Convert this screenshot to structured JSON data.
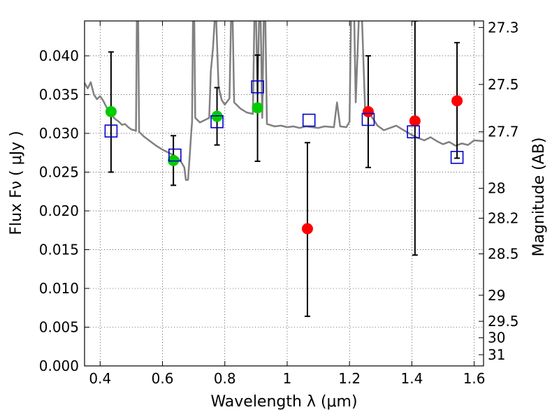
{
  "chart_data": {
    "type": "scatter",
    "title": "",
    "xlabel": "Wavelength  λ (μm)",
    "ylabel": "Flux  Fν  ( μJy )",
    "y2label": "Magnitude (AB)",
    "xlim": [
      0.35,
      1.63
    ],
    "ylim": [
      0.0,
      0.0445
    ],
    "xticks": [
      {
        "v": 0.4,
        "label": "0.4"
      },
      {
        "v": 0.6,
        "label": "0.6"
      },
      {
        "v": 0.8,
        "label": "0.8"
      },
      {
        "v": 1.0,
        "label": "1"
      },
      {
        "v": 1.2,
        "label": "1.2"
      },
      {
        "v": 1.4,
        "label": "1.4"
      },
      {
        "v": 1.6,
        "label": "1.6"
      }
    ],
    "yticks": [
      {
        "v": 0.0,
        "label": "0.000"
      },
      {
        "v": 0.005,
        "label": "0.005"
      },
      {
        "v": 0.01,
        "label": "0.010"
      },
      {
        "v": 0.015,
        "label": "0.015"
      },
      {
        "v": 0.02,
        "label": "0.020"
      },
      {
        "v": 0.025,
        "label": "0.025"
      },
      {
        "v": 0.03,
        "label": "0.030"
      },
      {
        "v": 0.035,
        "label": "0.035"
      },
      {
        "v": 0.04,
        "label": "0.040"
      }
    ],
    "y2ticks": [
      {
        "mag": 27.3,
        "label": "27.3"
      },
      {
        "mag": 27.5,
        "label": "27.5"
      },
      {
        "mag": 27.7,
        "label": "27.7"
      },
      {
        "mag": 28,
        "label": "28"
      },
      {
        "mag": 28.2,
        "label": "28.2"
      },
      {
        "mag": 28.5,
        "label": "28.5"
      },
      {
        "mag": 29,
        "label": "29"
      },
      {
        "mag": 29.5,
        "label": "29.5"
      },
      {
        "mag": 30,
        "label": "30"
      },
      {
        "mag": 31,
        "label": "31"
      }
    ],
    "grid": true,
    "legend": "none",
    "series": [
      {
        "type": "errorbar",
        "color": "#000000",
        "points": [
          {
            "x": 0.435,
            "y": 0.0328,
            "ylo": 0.025,
            "yhi": 0.0405
          },
          {
            "x": 0.635,
            "y": 0.0265,
            "ylo": 0.0233,
            "yhi": 0.0297
          },
          {
            "x": 0.775,
            "y": 0.0322,
            "ylo": 0.0285,
            "yhi": 0.0359
          },
          {
            "x": 0.905,
            "y": 0.0333,
            "ylo": 0.0264,
            "yhi": 0.0401
          },
          {
            "x": 1.065,
            "y": 0.0177,
            "ylo": 0.0064,
            "yhi": 0.0288
          },
          {
            "x": 1.26,
            "y": 0.0328,
            "ylo": 0.0256,
            "yhi": 0.04
          },
          {
            "x": 1.41,
            "y": 0.0316,
            "ylo": 0.0143,
            "yhi": 0.0445
          },
          {
            "x": 1.545,
            "y": 0.0342,
            "ylo": 0.0268,
            "yhi": 0.0417
          }
        ]
      },
      {
        "type": "marker",
        "shape": "circle",
        "color": "#00cc00",
        "points": [
          {
            "x": 0.435,
            "y": 0.0328
          },
          {
            "x": 0.635,
            "y": 0.0265
          },
          {
            "x": 0.775,
            "y": 0.0322
          },
          {
            "x": 0.905,
            "y": 0.0333
          }
        ]
      },
      {
        "type": "marker",
        "shape": "circle",
        "color": "#ff0000",
        "points": [
          {
            "x": 1.065,
            "y": 0.0177
          },
          {
            "x": 1.26,
            "y": 0.0328
          },
          {
            "x": 1.41,
            "y": 0.0316
          },
          {
            "x": 1.545,
            "y": 0.0342
          }
        ]
      },
      {
        "type": "marker",
        "shape": "square-open",
        "color": "#0000cc",
        "points": [
          {
            "x": 0.435,
            "y": 0.0303
          },
          {
            "x": 0.64,
            "y": 0.0272
          },
          {
            "x": 0.775,
            "y": 0.0315
          },
          {
            "x": 0.905,
            "y": 0.036
          },
          {
            "x": 1.07,
            "y": 0.0317
          },
          {
            "x": 1.26,
            "y": 0.0318
          },
          {
            "x": 1.405,
            "y": 0.0302
          },
          {
            "x": 1.545,
            "y": 0.0269
          }
        ]
      },
      {
        "type": "line",
        "color": "#808080",
        "points": [
          [
            0.35,
            0.0365
          ],
          [
            0.36,
            0.0358
          ],
          [
            0.37,
            0.0366
          ],
          [
            0.38,
            0.035
          ],
          [
            0.39,
            0.0344
          ],
          [
            0.4,
            0.0348
          ],
          [
            0.41,
            0.0342
          ],
          [
            0.42,
            0.0334
          ],
          [
            0.43,
            0.0328
          ],
          [
            0.44,
            0.0322
          ],
          [
            0.45,
            0.0318
          ],
          [
            0.46,
            0.0315
          ],
          [
            0.47,
            0.0311
          ],
          [
            0.48,
            0.0312
          ],
          [
            0.49,
            0.0308
          ],
          [
            0.5,
            0.0305
          ],
          [
            0.51,
            0.0304
          ],
          [
            0.515,
            0.0303
          ],
          [
            0.518,
            0.045
          ],
          [
            0.522,
            0.045
          ],
          [
            0.525,
            0.0302
          ],
          [
            0.54,
            0.0296
          ],
          [
            0.56,
            0.029
          ],
          [
            0.58,
            0.0284
          ],
          [
            0.6,
            0.0279
          ],
          [
            0.62,
            0.0275
          ],
          [
            0.64,
            0.0271
          ],
          [
            0.65,
            0.0268
          ],
          [
            0.66,
            0.0263
          ],
          [
            0.67,
            0.0256
          ],
          [
            0.675,
            0.024
          ],
          [
            0.682,
            0.024
          ],
          [
            0.688,
            0.0275
          ],
          [
            0.692,
            0.03
          ],
          [
            0.695,
            0.0315
          ],
          [
            0.698,
            0.045
          ],
          [
            0.702,
            0.045
          ],
          [
            0.705,
            0.032
          ],
          [
            0.72,
            0.0314
          ],
          [
            0.74,
            0.0318
          ],
          [
            0.75,
            0.032
          ],
          [
            0.755,
            0.038
          ],
          [
            0.762,
            0.041
          ],
          [
            0.768,
            0.045
          ],
          [
            0.772,
            0.045
          ],
          [
            0.78,
            0.036
          ],
          [
            0.79,
            0.0343
          ],
          [
            0.8,
            0.0337
          ],
          [
            0.815,
            0.0345
          ],
          [
            0.82,
            0.045
          ],
          [
            0.825,
            0.045
          ],
          [
            0.83,
            0.034
          ],
          [
            0.85,
            0.0332
          ],
          [
            0.87,
            0.0327
          ],
          [
            0.89,
            0.0325
          ],
          [
            0.895,
            0.045
          ],
          [
            0.9,
            0.045
          ],
          [
            0.905,
            0.035
          ],
          [
            0.91,
            0.045
          ],
          [
            0.915,
            0.045
          ],
          [
            0.92,
            0.032
          ],
          [
            0.925,
            0.045
          ],
          [
            0.93,
            0.045
          ],
          [
            0.935,
            0.0312
          ],
          [
            0.96,
            0.0309
          ],
          [
            0.98,
            0.031
          ],
          [
            1.0,
            0.0308
          ],
          [
            1.02,
            0.0309
          ],
          [
            1.04,
            0.0307
          ],
          [
            1.06,
            0.0309
          ],
          [
            1.08,
            0.0308
          ],
          [
            1.1,
            0.0307
          ],
          [
            1.12,
            0.0309
          ],
          [
            1.15,
            0.0308
          ],
          [
            1.16,
            0.034
          ],
          [
            1.17,
            0.0309
          ],
          [
            1.19,
            0.0308
          ],
          [
            1.2,
            0.0315
          ],
          [
            1.205,
            0.045
          ],
          [
            1.215,
            0.045
          ],
          [
            1.22,
            0.034
          ],
          [
            1.23,
            0.045
          ],
          [
            1.24,
            0.045
          ],
          [
            1.25,
            0.033
          ],
          [
            1.27,
            0.0322
          ],
          [
            1.29,
            0.031
          ],
          [
            1.31,
            0.0304
          ],
          [
            1.33,
            0.0307
          ],
          [
            1.35,
            0.031
          ],
          [
            1.37,
            0.0305
          ],
          [
            1.4,
            0.0298
          ],
          [
            1.42,
            0.0294
          ],
          [
            1.44,
            0.0291
          ],
          [
            1.46,
            0.0295
          ],
          [
            1.48,
            0.029
          ],
          [
            1.5,
            0.0286
          ],
          [
            1.52,
            0.0289
          ],
          [
            1.54,
            0.0284
          ],
          [
            1.56,
            0.0287
          ],
          [
            1.58,
            0.0285
          ],
          [
            1.6,
            0.0291
          ],
          [
            1.63,
            0.029
          ]
        ]
      }
    ]
  }
}
